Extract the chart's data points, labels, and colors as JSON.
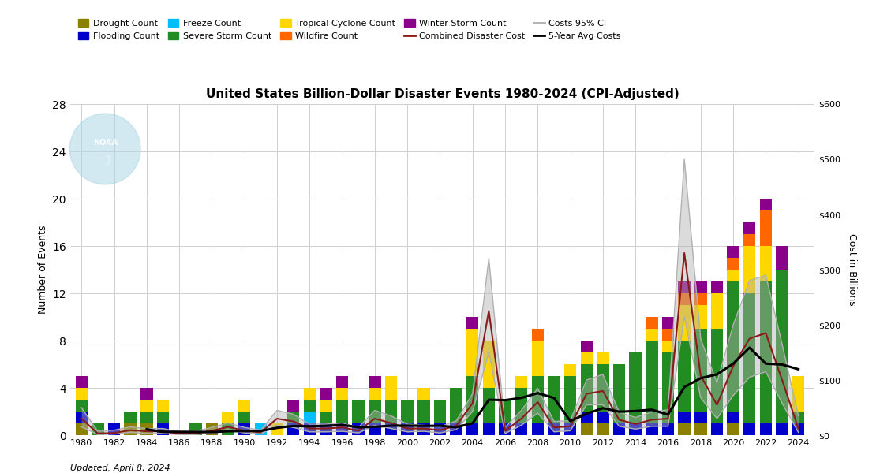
{
  "title": "United States Billion-Dollar Disaster Events 1980-2024 (CPI-Adjusted)",
  "years": [
    1980,
    1981,
    1982,
    1983,
    1984,
    1985,
    1986,
    1987,
    1988,
    1989,
    1990,
    1991,
    1992,
    1993,
    1994,
    1995,
    1996,
    1997,
    1998,
    1999,
    2000,
    2001,
    2002,
    2003,
    2004,
    2005,
    2006,
    2007,
    2008,
    2009,
    2010,
    2011,
    2012,
    2013,
    2014,
    2015,
    2016,
    2017,
    2018,
    2019,
    2020,
    2021,
    2022,
    2023,
    2024
  ],
  "drought": [
    1,
    0,
    0,
    1,
    1,
    0,
    0,
    0,
    1,
    0,
    0,
    0,
    0,
    0,
    0,
    0,
    0,
    0,
    0,
    0,
    0,
    0,
    0,
    0,
    0,
    0,
    0,
    0,
    0,
    0,
    0,
    1,
    1,
    0,
    0,
    0,
    0,
    1,
    1,
    0,
    1,
    0,
    0,
    0,
    0
  ],
  "flooding": [
    1,
    0,
    1,
    0,
    0,
    1,
    0,
    0,
    0,
    0,
    1,
    0,
    0,
    1,
    1,
    1,
    1,
    1,
    1,
    1,
    1,
    1,
    1,
    1,
    1,
    1,
    1,
    1,
    1,
    1,
    1,
    1,
    1,
    1,
    1,
    1,
    1,
    1,
    1,
    1,
    1,
    1,
    1,
    1,
    1
  ],
  "freeze": [
    0,
    0,
    0,
    0,
    0,
    0,
    0,
    0,
    0,
    0,
    0,
    1,
    0,
    0,
    1,
    0,
    0,
    0,
    0,
    0,
    0,
    0,
    0,
    0,
    0,
    0,
    0,
    0,
    0,
    0,
    0,
    0,
    0,
    0,
    0,
    0,
    0,
    0,
    0,
    0,
    0,
    0,
    0,
    0,
    0
  ],
  "severe_storm": [
    1,
    1,
    0,
    1,
    1,
    1,
    0,
    1,
    0,
    1,
    1,
    0,
    0,
    1,
    1,
    1,
    2,
    2,
    2,
    2,
    2,
    2,
    2,
    3,
    4,
    3,
    2,
    3,
    4,
    4,
    4,
    4,
    4,
    5,
    6,
    7,
    6,
    6,
    7,
    8,
    11,
    11,
    12,
    13,
    1
  ],
  "tropical_cyclone": [
    1,
    0,
    0,
    0,
    1,
    1,
    0,
    0,
    0,
    1,
    1,
    0,
    1,
    0,
    1,
    1,
    1,
    0,
    1,
    2,
    0,
    1,
    0,
    0,
    4,
    4,
    0,
    1,
    3,
    0,
    1,
    1,
    1,
    0,
    0,
    1,
    1,
    3,
    2,
    3,
    1,
    4,
    3,
    0,
    3
  ],
  "wildfire": [
    0,
    0,
    0,
    0,
    0,
    0,
    0,
    0,
    0,
    0,
    0,
    0,
    0,
    0,
    0,
    0,
    0,
    0,
    0,
    0,
    0,
    0,
    0,
    0,
    0,
    0,
    0,
    0,
    1,
    0,
    0,
    0,
    0,
    0,
    0,
    1,
    1,
    1,
    1,
    0,
    1,
    1,
    3,
    0,
    0
  ],
  "winter_storm": [
    1,
    0,
    0,
    0,
    1,
    0,
    0,
    0,
    0,
    0,
    0,
    0,
    0,
    1,
    0,
    1,
    1,
    0,
    1,
    0,
    0,
    0,
    0,
    0,
    1,
    0,
    0,
    0,
    0,
    0,
    0,
    1,
    0,
    0,
    0,
    0,
    1,
    1,
    1,
    1,
    1,
    1,
    1,
    2,
    0
  ],
  "combined_cost": [
    30,
    3,
    4,
    9,
    7,
    7,
    3,
    3,
    8,
    15,
    8,
    5,
    30,
    25,
    12,
    12,
    14,
    8,
    30,
    22,
    12,
    12,
    9,
    17,
    58,
    225,
    8,
    30,
    60,
    14,
    16,
    75,
    80,
    28,
    20,
    28,
    30,
    330,
    108,
    55,
    125,
    175,
    185,
    100,
    12
  ],
  "cost_ci_upper": [
    50,
    7,
    9,
    15,
    12,
    12,
    6,
    7,
    14,
    22,
    14,
    9,
    45,
    38,
    20,
    20,
    22,
    14,
    45,
    35,
    20,
    18,
    15,
    26,
    75,
    320,
    14,
    45,
    85,
    25,
    26,
    100,
    110,
    42,
    32,
    42,
    46,
    500,
    175,
    95,
    200,
    280,
    290,
    165,
    35
  ],
  "cost_ci_lower": [
    15,
    1,
    2,
    5,
    3,
    3,
    1,
    1,
    4,
    10,
    4,
    2,
    18,
    14,
    6,
    6,
    7,
    4,
    18,
    12,
    6,
    7,
    4,
    10,
    43,
    150,
    3,
    18,
    40,
    6,
    8,
    55,
    55,
    16,
    11,
    16,
    16,
    215,
    68,
    30,
    72,
    105,
    115,
    58,
    5
  ],
  "ylabel_left": "Number of Events",
  "ylabel_right": "Cost in Billions",
  "xlabel": "",
  "updated_text": "Updated: April 8, 2024",
  "colors": {
    "drought": "#8B8000",
    "flooding": "#0000CD",
    "freeze": "#00BFFF",
    "severe_storm": "#228B22",
    "tropical_cyclone": "#FFD700",
    "wildfire": "#FF6600",
    "winter_storm": "#8B008B",
    "combined_cost_line": "#8B1A1A",
    "ci_band": "#B0B0B0",
    "five_yr_avg": "#000000"
  },
  "ylim_left": [
    0,
    28
  ],
  "ylim_right": [
    0,
    600
  ],
  "yticks_left": [
    0,
    4,
    8,
    12,
    16,
    20,
    24,
    28
  ],
  "yticks_right": [
    0,
    100,
    200,
    300,
    400,
    500,
    600
  ],
  "xticks": [
    1980,
    1982,
    1984,
    1986,
    1988,
    1990,
    1992,
    1994,
    1996,
    1998,
    2000,
    2002,
    2004,
    2006,
    2008,
    2010,
    2012,
    2014,
    2016,
    2018,
    2020,
    2022,
    2024
  ],
  "xlim": [
    1979.3,
    2025.0
  ],
  "background_color": "#ffffff",
  "grid_color": "#d0d0d0",
  "bar_width": 0.75,
  "legend_items": [
    {
      "type": "patch",
      "label": "Drought Count",
      "color": "#8B8000"
    },
    {
      "type": "patch",
      "label": "Flooding Count",
      "color": "#0000CD"
    },
    {
      "type": "patch",
      "label": "Freeze Count",
      "color": "#00BFFF"
    },
    {
      "type": "patch",
      "label": "Severe Storm Count",
      "color": "#228B22"
    },
    {
      "type": "patch",
      "label": "Tropical Cyclone Count",
      "color": "#FFD700"
    },
    {
      "type": "patch",
      "label": "Wildfire Count",
      "color": "#FF6600"
    },
    {
      "type": "patch",
      "label": "Winter Storm Count",
      "color": "#8B008B"
    },
    {
      "type": "line",
      "label": "Combined Disaster Cost",
      "color": "#8B1A1A"
    },
    {
      "type": "line",
      "label": "Costs 95% CI",
      "color": "#B0B0B0"
    },
    {
      "type": "line",
      "label": "5-Year Avg Costs",
      "color": "#000000"
    }
  ]
}
